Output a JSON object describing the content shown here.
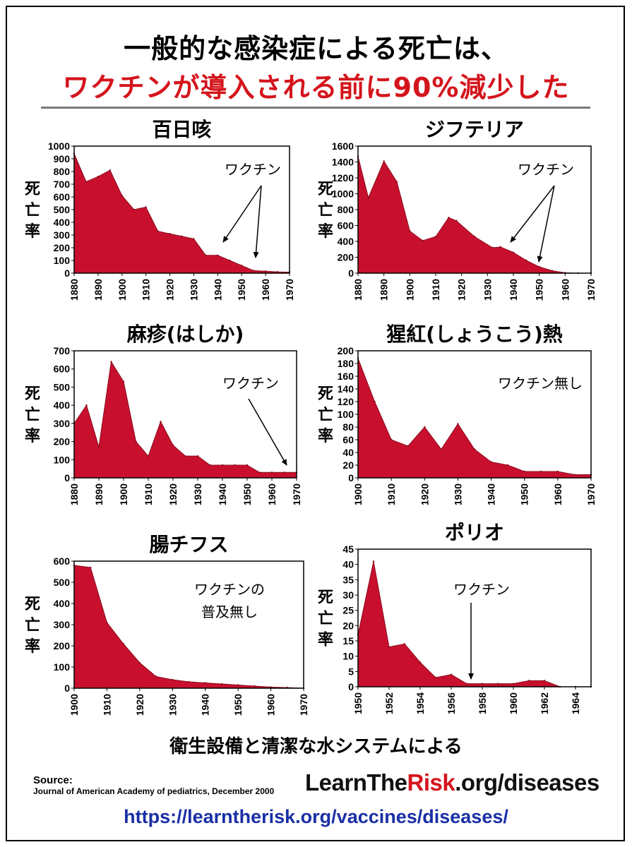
{
  "header": {
    "title_line1": "一般的な感染症による死亡は、",
    "title_line2": "ワクチンが導入される前に90%減少した"
  },
  "footer": {
    "text": "衛生設備と清潔な水システムによる",
    "source_label": "Source:",
    "source_text": "Journal of American Academy of pediatrics, December 2000",
    "brand_pre": "LearnThe",
    "brand_highlight": "Risk",
    "brand_post": ".org/diseases",
    "url": "https://learntherisk.org/vaccines/diseases/"
  },
  "colors": {
    "fill": "#c8102e",
    "title_red": "#d4141c",
    "url_blue": "#1a2fa6"
  },
  "chart_data": [
    {
      "type": "area",
      "title": "百日咳",
      "ylabel": "死亡率",
      "x": [
        1880,
        1885,
        1890,
        1895,
        1900,
        1905,
        1910,
        1915,
        1920,
        1925,
        1930,
        1935,
        1940,
        1945,
        1950,
        1955,
        1960,
        1965,
        1970
      ],
      "values": [
        940,
        720,
        760,
        810,
        610,
        500,
        520,
        330,
        310,
        290,
        270,
        140,
        140,
        100,
        60,
        20,
        15,
        10,
        8
      ],
      "xlim": [
        1880,
        1970
      ],
      "ylim": [
        0,
        1000
      ],
      "xticks": [
        1880,
        1890,
        1900,
        1910,
        1920,
        1930,
        1940,
        1950,
        1960,
        1970
      ],
      "yticks": [
        0,
        100,
        200,
        300,
        400,
        500,
        600,
        700,
        800,
        900,
        1000
      ],
      "annotation": "ワクチン",
      "grid": false
    },
    {
      "type": "area",
      "title": "ジフテリア",
      "ylabel": "死亡率",
      "x": [
        1880,
        1884,
        1890,
        1895,
        1900,
        1905,
        1910,
        1915,
        1918,
        1925,
        1932,
        1935,
        1940,
        1945,
        1950,
        1955,
        1960,
        1965,
        1970
      ],
      "values": [
        1470,
        950,
        1410,
        1150,
        530,
        410,
        460,
        700,
        660,
        460,
        320,
        330,
        260,
        160,
        80,
        30,
        5,
        0,
        0
      ],
      "xlim": [
        1880,
        1970
      ],
      "ylim": [
        0,
        1600
      ],
      "xticks": [
        1880,
        1890,
        1900,
        1910,
        1920,
        1930,
        1940,
        1950,
        1960,
        1970
      ],
      "yticks": [
        0,
        200,
        400,
        600,
        800,
        1000,
        1200,
        1400,
        1600
      ],
      "annotation": "ワクチン",
      "grid": false
    },
    {
      "type": "area",
      "title": "麻疹(はしか)",
      "ylabel": "死亡率",
      "x": [
        1880,
        1885,
        1890,
        1895,
        1900,
        1905,
        1910,
        1915,
        1920,
        1925,
        1930,
        1935,
        1940,
        1945,
        1950,
        1955,
        1960,
        1965,
        1970
      ],
      "values": [
        300,
        400,
        170,
        640,
        530,
        200,
        120,
        310,
        180,
        120,
        120,
        70,
        70,
        70,
        70,
        30,
        30,
        30,
        30
      ],
      "xlim": [
        1880,
        1970
      ],
      "ylim": [
        0,
        700
      ],
      "xticks": [
        1880,
        1890,
        1900,
        1910,
        1920,
        1930,
        1940,
        1950,
        1960,
        1970
      ],
      "yticks": [
        0,
        100,
        200,
        300,
        400,
        500,
        600,
        700
      ],
      "annotation": "ワクチン",
      "grid": false
    },
    {
      "type": "area",
      "title": "猩紅(しょうこう)熱",
      "ylabel": "死亡率",
      "x": [
        1900,
        1905,
        1910,
        1915,
        1920,
        1925,
        1930,
        1935,
        1940,
        1945,
        1950,
        1955,
        1960,
        1965,
        1970
      ],
      "values": [
        188,
        120,
        60,
        50,
        80,
        45,
        85,
        45,
        25,
        20,
        10,
        10,
        10,
        5,
        5
      ],
      "xlim": [
        1900,
        1970
      ],
      "ylim": [
        0,
        200
      ],
      "xticks": [
        1900,
        1910,
        1920,
        1930,
        1940,
        1950,
        1960,
        1970
      ],
      "yticks": [
        0,
        20,
        40,
        60,
        80,
        100,
        120,
        140,
        160,
        180,
        200
      ],
      "annotation": "ワクチン無し",
      "grid": false
    },
    {
      "type": "area",
      "title": "腸チフス",
      "ylabel": "死亡率",
      "x": [
        1900,
        1905,
        1910,
        1915,
        1920,
        1925,
        1930,
        1935,
        1940,
        1945,
        1950,
        1955,
        1960,
        1965,
        1970
      ],
      "values": [
        580,
        570,
        310,
        210,
        120,
        55,
        40,
        30,
        25,
        20,
        15,
        10,
        5,
        3,
        0
      ],
      "xlim": [
        1900,
        1970
      ],
      "ylim": [
        0,
        600
      ],
      "xticks": [
        1900,
        1910,
        1920,
        1930,
        1940,
        1950,
        1960,
        1970
      ],
      "yticks": [
        0,
        100,
        200,
        300,
        400,
        500,
        600
      ],
      "annotation_lines": [
        "ワクチンの",
        "普及無し"
      ],
      "grid": false
    },
    {
      "type": "area",
      "title": "ポリオ",
      "ylabel": "死亡率",
      "x": [
        1950,
        1951,
        1952,
        1953,
        1954,
        1955,
        1956,
        1957,
        1958,
        1959,
        1960,
        1961,
        1962,
        1963,
        1964,
        1965
      ],
      "values": [
        17,
        41,
        13,
        14,
        8,
        3,
        4,
        1,
        1,
        1,
        1,
        2,
        2,
        0,
        0,
        0
      ],
      "xlim": [
        1950,
        1965
      ],
      "ylim": [
        0,
        45
      ],
      "xticks": [
        1950,
        1952,
        1954,
        1956,
        1958,
        1960,
        1962,
        1964
      ],
      "yticks": [
        0,
        5,
        10,
        15,
        20,
        25,
        30,
        35,
        40,
        45
      ],
      "annotation": "ワクチン",
      "grid": false
    }
  ]
}
